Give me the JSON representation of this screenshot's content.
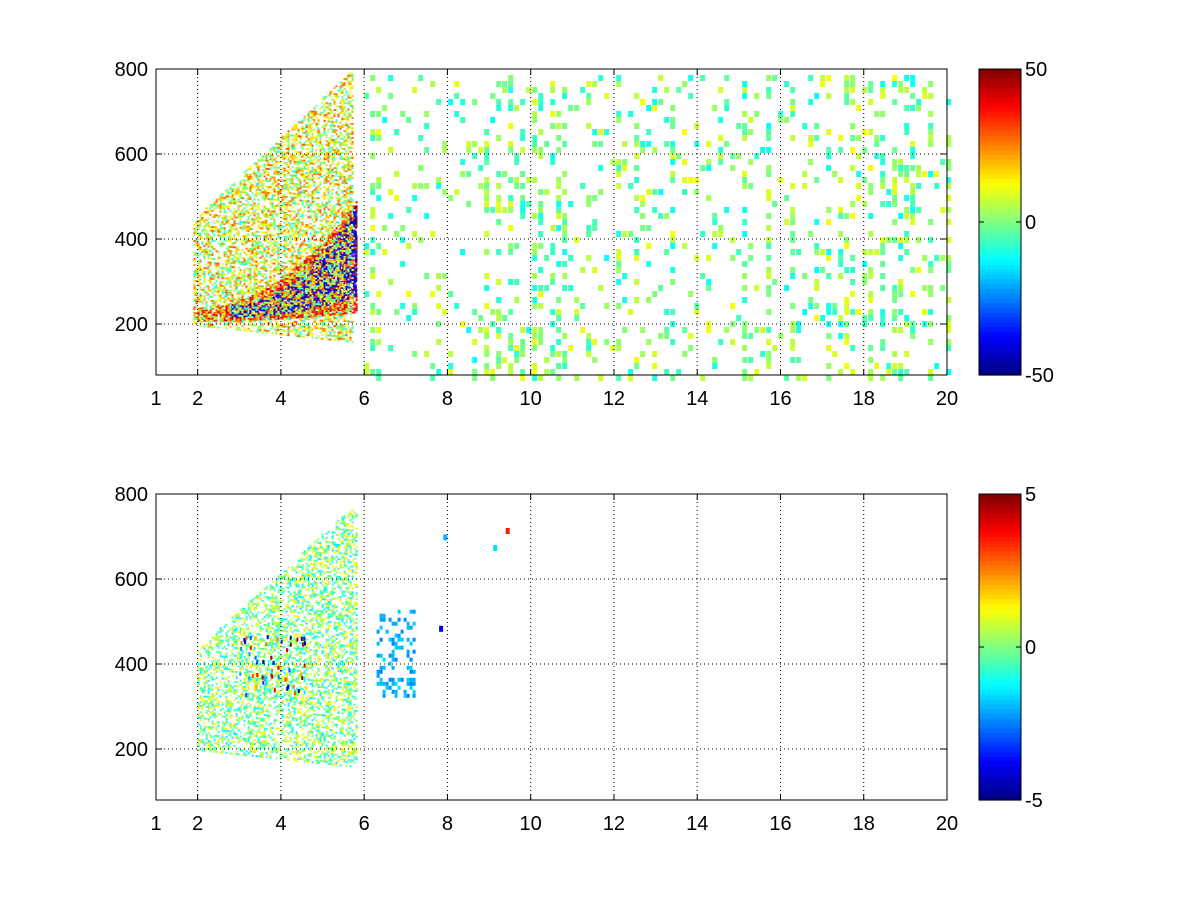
{
  "chart_data": [
    {
      "type": "heatmap",
      "title": "",
      "xlabel": "",
      "ylabel": "",
      "xlim": [
        1,
        20
      ],
      "ylim": [
        80,
        800
      ],
      "xticks": [
        1,
        2,
        4,
        6,
        8,
        10,
        12,
        14,
        16,
        18,
        20
      ],
      "yticks": [
        200,
        400,
        600,
        800
      ],
      "grid": true,
      "colormap": "jet",
      "missing_color": "#ffffff",
      "colorbar": {
        "clim": [
          -50,
          50
        ],
        "ticks": [
          50,
          0,
          -50
        ],
        "placement": "right"
      },
      "features": [
        {
          "kind": "arc",
          "x_range": [
            2.0,
            5.8
          ],
          "y_lo_range": [
            210,
            230
          ],
          "y_hi_range": [
            240,
            490
          ],
          "value": 45
        },
        {
          "kind": "arc",
          "x_range": [
            2.8,
            5.8
          ],
          "y_lo_range": [
            220,
            270
          ],
          "y_hi_range": [
            245,
            480
          ],
          "value": -45
        },
        {
          "kind": "blob",
          "x_range": [
            1.9,
            5.7
          ],
          "y_range": [
            160,
            800
          ],
          "value_range": [
            -10,
            30
          ]
        },
        {
          "kind": "speckle",
          "x_range": [
            6,
            20
          ],
          "y_range": [
            80,
            800
          ],
          "value_range": [
            -12,
            12
          ]
        }
      ]
    },
    {
      "type": "heatmap",
      "title": "",
      "xlabel": "",
      "ylabel": "",
      "xlim": [
        1,
        20
      ],
      "ylim": [
        80,
        800
      ],
      "xticks": [
        1,
        2,
        4,
        6,
        8,
        10,
        12,
        14,
        16,
        18,
        20
      ],
      "yticks": [
        200,
        400,
        600,
        800
      ],
      "grid": true,
      "colormap": "jet",
      "missing_color": "#ffffff",
      "colorbar": {
        "clim": [
          -5,
          5
        ],
        "ticks": [
          5,
          0,
          -5
        ],
        "placement": "right"
      },
      "features": [
        {
          "kind": "blob",
          "x_range": [
            2.0,
            5.8
          ],
          "y_range": [
            160,
            780
          ],
          "value_range": [
            -1.5,
            1.5
          ]
        },
        {
          "kind": "outliers",
          "x_range": [
            3.0,
            4.6
          ],
          "y_range": [
            330,
            480
          ],
          "value_range": [
            -5,
            5
          ]
        },
        {
          "kind": "patch",
          "x_range": [
            6.3,
            7.2
          ],
          "y_range": [
            330,
            530
          ],
          "value": -2
        },
        {
          "kind": "isolated",
          "points": [
            [
              7.8,
              490,
              -4
            ],
            [
              9.4,
              720,
              3.5
            ],
            [
              9.1,
              680,
              -1.5
            ],
            [
              7.9,
              705,
              -2
            ]
          ]
        }
      ]
    }
  ]
}
